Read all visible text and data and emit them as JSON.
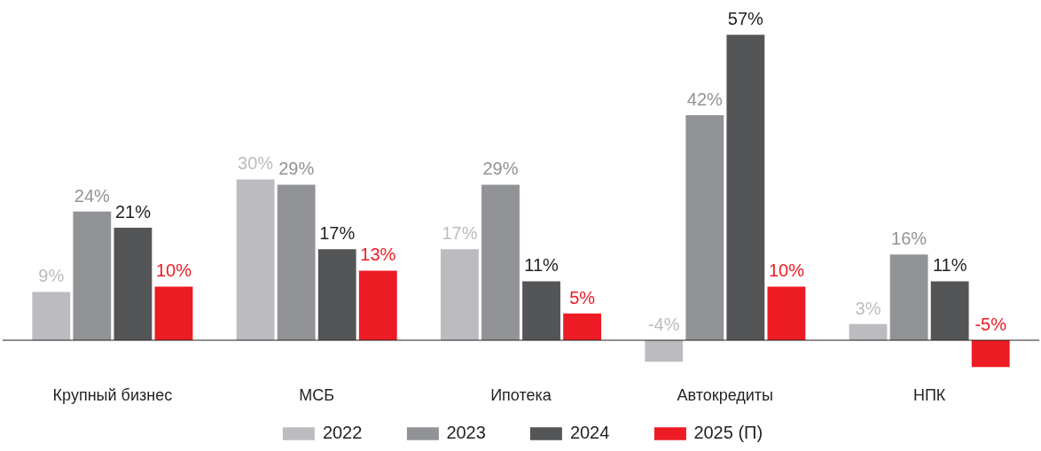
{
  "chart_data": {
    "type": "bar",
    "categories": [
      "Крупный бизнес",
      "МСБ",
      "Ипотека",
      "Автокредиты",
      "НПК"
    ],
    "tick_labels": "x",
    "grid": false,
    "legend": "bottom",
    "series": [
      {
        "name": "2022",
        "color": "#bcbcc0",
        "values": [
          9,
          30,
          17,
          -4,
          3
        ],
        "value_labels": [
          "9%",
          "30%",
          "17%",
          "-4%",
          "3%"
        ]
      },
      {
        "name": "2023",
        "color": "#929397",
        "values": [
          24,
          29,
          29,
          42,
          16
        ],
        "value_labels": [
          "24%",
          "29%",
          "29%",
          "42%",
          "16%"
        ]
      },
      {
        "name": "2024",
        "color": "#545557",
        "values": [
          21,
          17,
          11,
          57,
          11
        ],
        "value_labels": [
          "21%",
          "17%",
          "11%",
          "57%",
          "11%"
        ]
      },
      {
        "name": "2025 (П)",
        "color": "#ed1c24",
        "values": [
          10,
          13,
          5,
          10,
          -5
        ],
        "value_labels": [
          "10%",
          "13%",
          "5%",
          "10%",
          "-5%"
        ]
      }
    ]
  }
}
